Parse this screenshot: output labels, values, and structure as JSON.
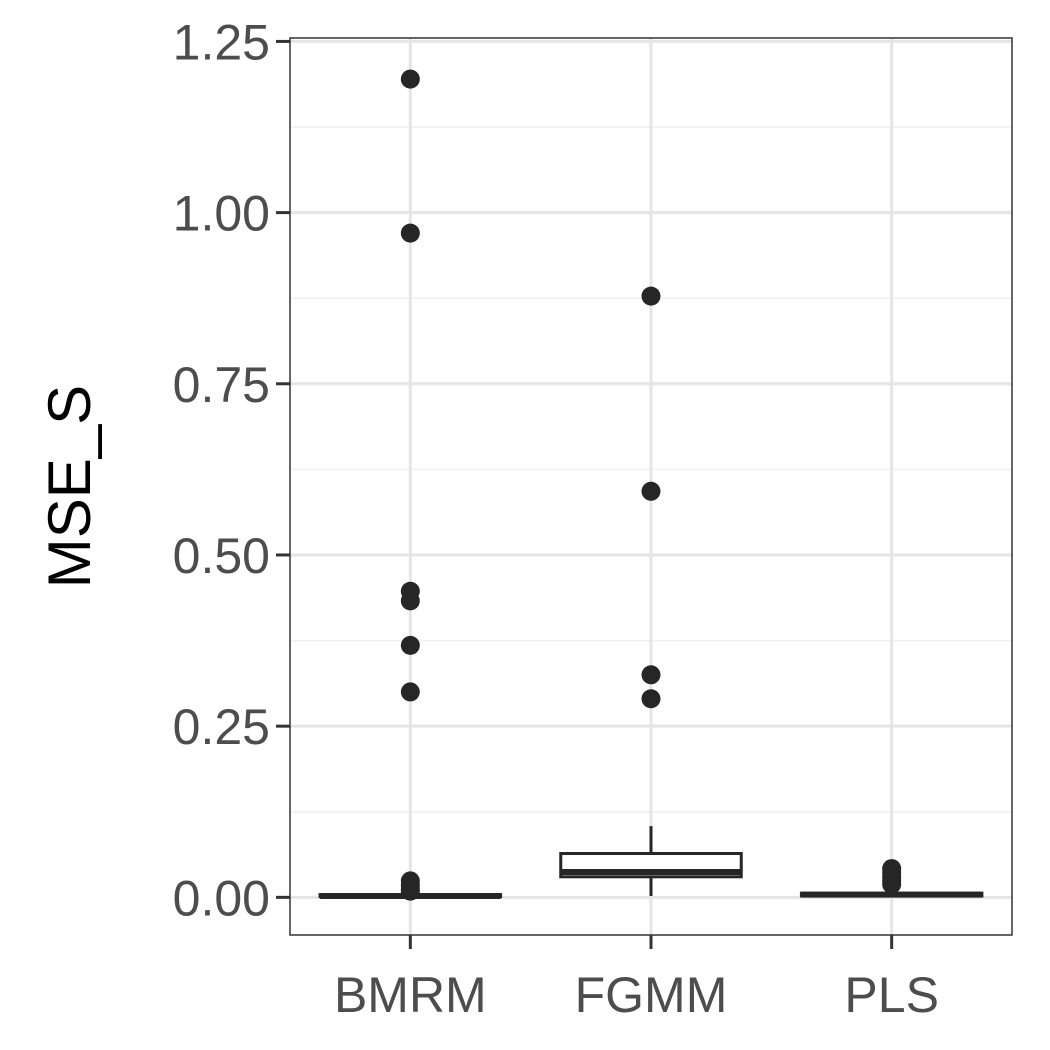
{
  "chart_data": {
    "type": "boxplot",
    "title": "",
    "xlabel": "",
    "ylabel": "MSE_S",
    "ylim": [
      -0.055,
      1.255
    ],
    "y_ticks": [
      0.0,
      0.25,
      0.5,
      0.75,
      1.0,
      1.25
    ],
    "y_tick_labels": [
      "0.00",
      "0.25",
      "0.50",
      "0.75",
      "1.00",
      "1.25"
    ],
    "y_minor_ticks": [
      0.125,
      0.375,
      0.625,
      0.875,
      1.125
    ],
    "categories": [
      "BMRM",
      "FGMM",
      "PLS"
    ],
    "grid": true,
    "legend": "none",
    "boxes": [
      {
        "category": "BMRM",
        "whisker_low": 0.0,
        "q1": 0.001,
        "median": 0.002,
        "q3": 0.004,
        "whisker_high": 0.008,
        "outliers": [
          1.195,
          0.97,
          0.447,
          0.433,
          0.368,
          0.3,
          0.024,
          0.018,
          0.012,
          0.009
        ]
      },
      {
        "category": "FGMM",
        "whisker_low": 0.002,
        "q1": 0.03,
        "median": 0.037,
        "q3": 0.064,
        "whisker_high": 0.104,
        "outliers": [
          0.878,
          0.593,
          0.325,
          0.29
        ]
      },
      {
        "category": "PLS",
        "whisker_low": 0.0,
        "q1": 0.002,
        "median": 0.004,
        "q3": 0.006,
        "whisker_high": 0.01,
        "outliers": [
          0.042,
          0.036,
          0.03,
          0.024,
          0.019
        ]
      }
    ],
    "colors": {
      "box_line": "#262626",
      "box_fill": "#ffffff",
      "outlier": "#262626",
      "grid_major": "#e5e5e5",
      "grid_minor": "#f0f0f0",
      "panel_border": "#333333",
      "tick_label": "#4d4d4d"
    }
  }
}
